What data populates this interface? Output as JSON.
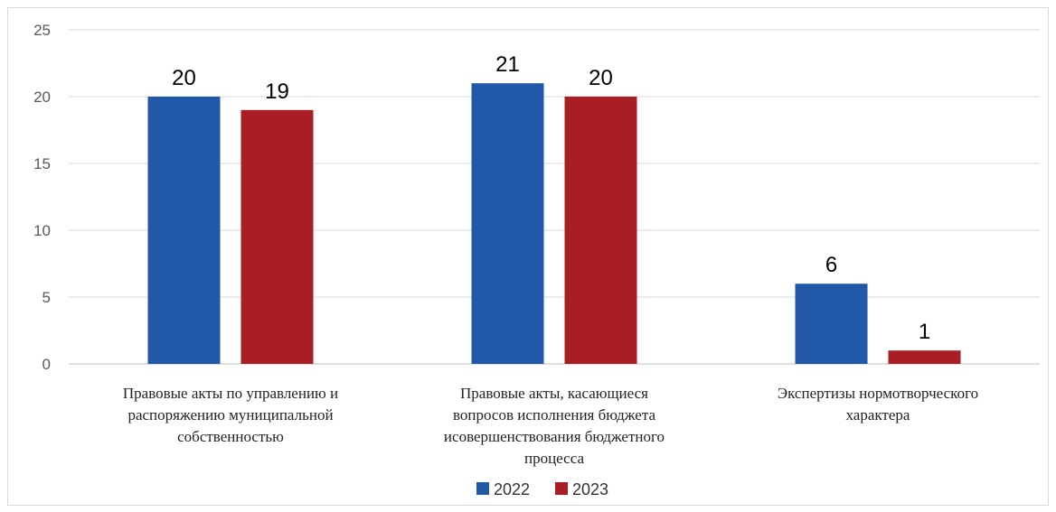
{
  "chart_data": {
    "type": "bar",
    "title": "",
    "xlabel": "",
    "ylabel": "",
    "ylim": [
      0,
      25
    ],
    "yticks": [
      0,
      5,
      10,
      15,
      20,
      25
    ],
    "grid": true,
    "legend_position": "bottom",
    "categories": [
      [
        "Правовые акты по управлению и",
        "распоряжению муниципальной",
        "собственностью"
      ],
      [
        "Правовые акты, касающиеся",
        "вопросов исполнения бюджета",
        "исовершенствования бюджетного",
        "процесса"
      ],
      [
        "Экспертизы нормотворческого",
        "характера"
      ]
    ],
    "series": [
      {
        "name": "2022",
        "color": "#2158a8",
        "values": [
          20,
          21,
          6
        ]
      },
      {
        "name": "2023",
        "color": "#a81e24",
        "values": [
          19,
          20,
          1
        ]
      }
    ]
  }
}
